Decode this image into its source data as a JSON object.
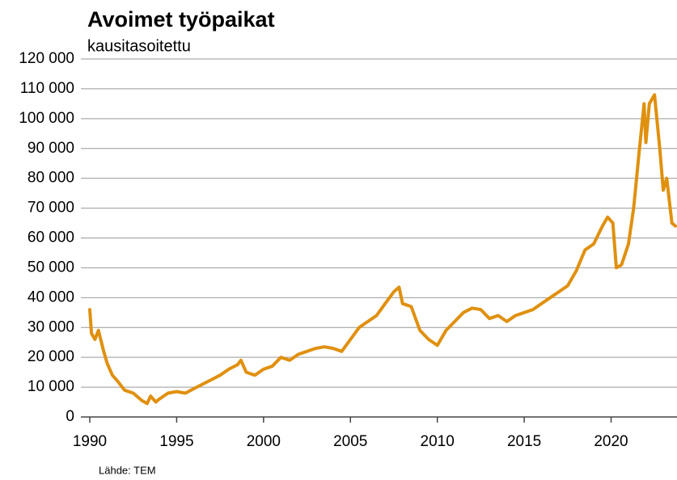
{
  "chart_data": {
    "type": "line",
    "title": "Avoimet työpaikat",
    "subtitle": "kausitasoitettu",
    "source": "Lähde: TEM",
    "x": [
      1990.0,
      1990.1,
      1990.3,
      1990.5,
      1990.8,
      1991.0,
      1991.3,
      1991.6,
      1992.0,
      1992.5,
      1993.0,
      1993.3,
      1993.5,
      1993.8,
      1994.0,
      1994.5,
      1995.0,
      1995.5,
      1996.0,
      1996.5,
      1997.0,
      1997.5,
      1998.0,
      1998.5,
      1998.7,
      1999.0,
      1999.5,
      2000.0,
      2000.5,
      2001.0,
      2001.5,
      2002.0,
      2002.5,
      2003.0,
      2003.5,
      2004.0,
      2004.5,
      2005.0,
      2005.5,
      2006.0,
      2006.5,
      2007.0,
      2007.5,
      2007.8,
      2008.0,
      2008.5,
      2009.0,
      2009.5,
      2010.0,
      2010.5,
      2011.0,
      2011.5,
      2012.0,
      2012.5,
      2013.0,
      2013.5,
      2014.0,
      2014.5,
      2015.0,
      2015.5,
      2016.0,
      2016.5,
      2017.0,
      2017.5,
      2018.0,
      2018.5,
      2019.0,
      2019.5,
      2019.8,
      2020.1,
      2020.3,
      2020.6,
      2021.0,
      2021.3,
      2021.6,
      2021.9,
      2022.0,
      2022.2,
      2022.5,
      2022.8,
      2023.0,
      2023.2,
      2023.5,
      2023.7
    ],
    "series": [
      {
        "name": "Avoimet työpaikat",
        "color": "#e0900f",
        "values": [
          36000,
          28000,
          26000,
          29000,
          22000,
          18000,
          14000,
          12000,
          9000,
          8000,
          5500,
          4500,
          7000,
          5000,
          6000,
          8000,
          8500,
          8000,
          9500,
          11000,
          12500,
          14000,
          16000,
          17500,
          19000,
          15000,
          14000,
          16000,
          17000,
          20000,
          19000,
          21000,
          22000,
          23000,
          23500,
          23000,
          22000,
          26000,
          30000,
          32000,
          34000,
          38000,
          42000,
          43500,
          38000,
          37000,
          29000,
          26000,
          24000,
          29000,
          32000,
          35000,
          36500,
          36000,
          33000,
          34000,
          32000,
          34000,
          35000,
          36000,
          38000,
          40000,
          42000,
          44000,
          49000,
          56000,
          58000,
          64000,
          67000,
          65000,
          50000,
          51000,
          58000,
          70000,
          88000,
          105000,
          92000,
          105000,
          108000,
          90000,
          76000,
          80000,
          65000,
          64000
        ]
      }
    ],
    "xlim": [
      1990,
      2023.7
    ],
    "xticks": [
      1990,
      1995,
      2000,
      2005,
      2010,
      2015,
      2020
    ],
    "ylim": [
      0,
      120000
    ],
    "yticks": [
      0,
      {
        "value": 10000,
        "label": "10 000"
      },
      {
        "value": 20000,
        "label": "20 000"
      },
      {
        "value": 30000,
        "label": "30 000"
      },
      {
        "value": 40000,
        "label": "40 000"
      },
      {
        "value": 50000,
        "label": "50 000"
      },
      {
        "value": 60000,
        "label": "60 000"
      },
      {
        "value": 70000,
        "label": "70 000"
      },
      {
        "value": 80000,
        "label": "80 000"
      },
      {
        "value": 90000,
        "label": "90 000"
      },
      {
        "value": 100000,
        "label": "100 000"
      },
      {
        "value": 110000,
        "label": "110 000"
      },
      {
        "value": 120000,
        "label": "120 000"
      }
    ],
    "grid": true
  }
}
